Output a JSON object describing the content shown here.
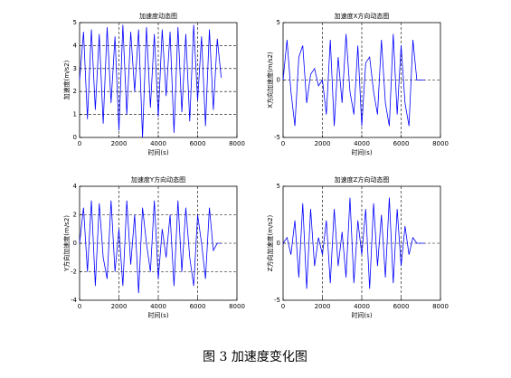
{
  "chart_data": [
    {
      "type": "line",
      "title": "加速度动态图",
      "xlabel": "时间(s)",
      "ylabel": "加速度(m/s2)",
      "x": [
        0,
        200,
        400,
        600,
        800,
        1000,
        1200,
        1400,
        1600,
        1800,
        2000,
        2200,
        2400,
        2600,
        2800,
        3000,
        3200,
        3400,
        3600,
        3800,
        4000,
        4200,
        4400,
        4600,
        4800,
        5000,
        5200,
        5400,
        5600,
        5800,
        6000,
        6200,
        6400,
        6600,
        6800,
        7000,
        7200
      ],
      "series": [
        {
          "color": "#0000ff",
          "values": [
            2.5,
            4.6,
            0.8,
            4.7,
            1.2,
            4.5,
            0.6,
            4.8,
            1.5,
            4.4,
            0.3,
            4.9,
            1.0,
            4.6,
            2.0,
            4.7,
            0.0,
            4.8,
            1.3,
            4.5,
            0.9,
            4.7,
            1.8,
            4.6,
            0.2,
            4.8,
            1.1,
            4.5,
            0.7,
            4.9,
            1.6,
            4.4,
            0.5,
            4.7,
            1.2,
            4.3,
            2.6
          ]
        }
      ],
      "xlim": [
        0,
        8000
      ],
      "xticks": [
        0,
        2000,
        4000,
        6000,
        8000
      ],
      "ylim": [
        0,
        5
      ],
      "yticks": [
        0,
        1,
        2,
        3,
        4,
        5
      ],
      "grid": true
    },
    {
      "type": "line",
      "title": "加速度X方向动态图",
      "xlabel": "时间(s)",
      "ylabel": "X方向加速度(m/s2)",
      "x": [
        0,
        200,
        400,
        600,
        800,
        1000,
        1200,
        1400,
        1600,
        1800,
        2000,
        2200,
        2400,
        2600,
        2800,
        3000,
        3200,
        3400,
        3600,
        3800,
        4000,
        4200,
        4400,
        4600,
        4800,
        5000,
        5200,
        5400,
        5600,
        5800,
        6000,
        6200,
        6400,
        6600,
        6800,
        7000,
        7200
      ],
      "series": [
        {
          "color": "#0000ff",
          "values": [
            0,
            3.5,
            -1,
            -4,
            2,
            3,
            -2,
            0.5,
            1,
            -0.5,
            0,
            -3,
            3.5,
            -4,
            2,
            -2,
            4,
            -1,
            -3,
            3,
            -4,
            1.5,
            2,
            -1,
            -3,
            3.5,
            -2,
            -4,
            4,
            -3,
            3,
            -2,
            -4,
            3.5,
            0,
            0,
            0
          ]
        }
      ],
      "xlim": [
        0,
        8000
      ],
      "xticks": [
        0,
        2000,
        4000,
        6000,
        8000
      ],
      "ylim": [
        -5,
        5
      ],
      "yticks": [
        -5,
        0,
        5
      ],
      "grid": true
    },
    {
      "type": "line",
      "title": "加速度Y方向动态图",
      "xlabel": "时间(s)",
      "ylabel": "Y方向加速度(m/s2)",
      "x": [
        0,
        200,
        400,
        600,
        800,
        1000,
        1200,
        1400,
        1600,
        1800,
        2000,
        2200,
        2400,
        2600,
        2800,
        3000,
        3200,
        3400,
        3600,
        3800,
        4000,
        4200,
        4400,
        4600,
        4800,
        5000,
        5200,
        5400,
        5600,
        5800,
        6000,
        6200,
        6400,
        6600,
        6800,
        7000,
        7200
      ],
      "series": [
        {
          "color": "#0000ff",
          "values": [
            0,
            2.5,
            -2,
            3,
            -3,
            2.8,
            -1,
            -2.5,
            3,
            -2,
            1,
            -3,
            3,
            -1.5,
            2,
            -3.5,
            2.5,
            0,
            -2,
            3,
            -2.5,
            1,
            -1,
            2,
            -3,
            3,
            -2,
            2.5,
            -1,
            -3,
            2,
            0,
            -2.5,
            2.5,
            -0.5,
            0,
            0
          ]
        }
      ],
      "xlim": [
        0,
        8000
      ],
      "xticks": [
        0,
        2000,
        4000,
        6000,
        8000
      ],
      "ylim": [
        -4,
        4
      ],
      "yticks": [
        -4,
        -2,
        0,
        2,
        4
      ],
      "grid": true
    },
    {
      "type": "line",
      "title": "加速度Z方向动态图",
      "xlabel": "时间(s)",
      "ylabel": "Z方向加速度(m/s2)",
      "x": [
        0,
        200,
        400,
        600,
        800,
        1000,
        1200,
        1400,
        1600,
        1800,
        2000,
        2200,
        2400,
        2600,
        2800,
        3000,
        3200,
        3400,
        3600,
        3800,
        4000,
        4200,
        4400,
        4600,
        4800,
        5000,
        5200,
        5400,
        5600,
        5800,
        6000,
        6200,
        6400,
        6600,
        6800,
        7000,
        7200
      ],
      "series": [
        {
          "color": "#0000ff",
          "values": [
            0,
            0.5,
            -1,
            2,
            -3,
            3.5,
            -4,
            3,
            -2,
            0.5,
            -1,
            2,
            -3.5,
            3,
            -2,
            1,
            -3,
            4,
            -3.5,
            2,
            -1,
            3,
            -4,
            3.5,
            -2,
            2.5,
            -3,
            4,
            -3.5,
            3,
            -2,
            1.5,
            -1,
            0.5,
            0,
            0,
            0
          ]
        }
      ],
      "xlim": [
        0,
        8000
      ],
      "xticks": [
        0,
        2000,
        4000,
        6000,
        8000
      ],
      "ylim": [
        -5,
        5
      ],
      "yticks": [
        -5,
        0,
        5
      ],
      "grid": true
    }
  ],
  "caption": "图 3  加速度变化图"
}
